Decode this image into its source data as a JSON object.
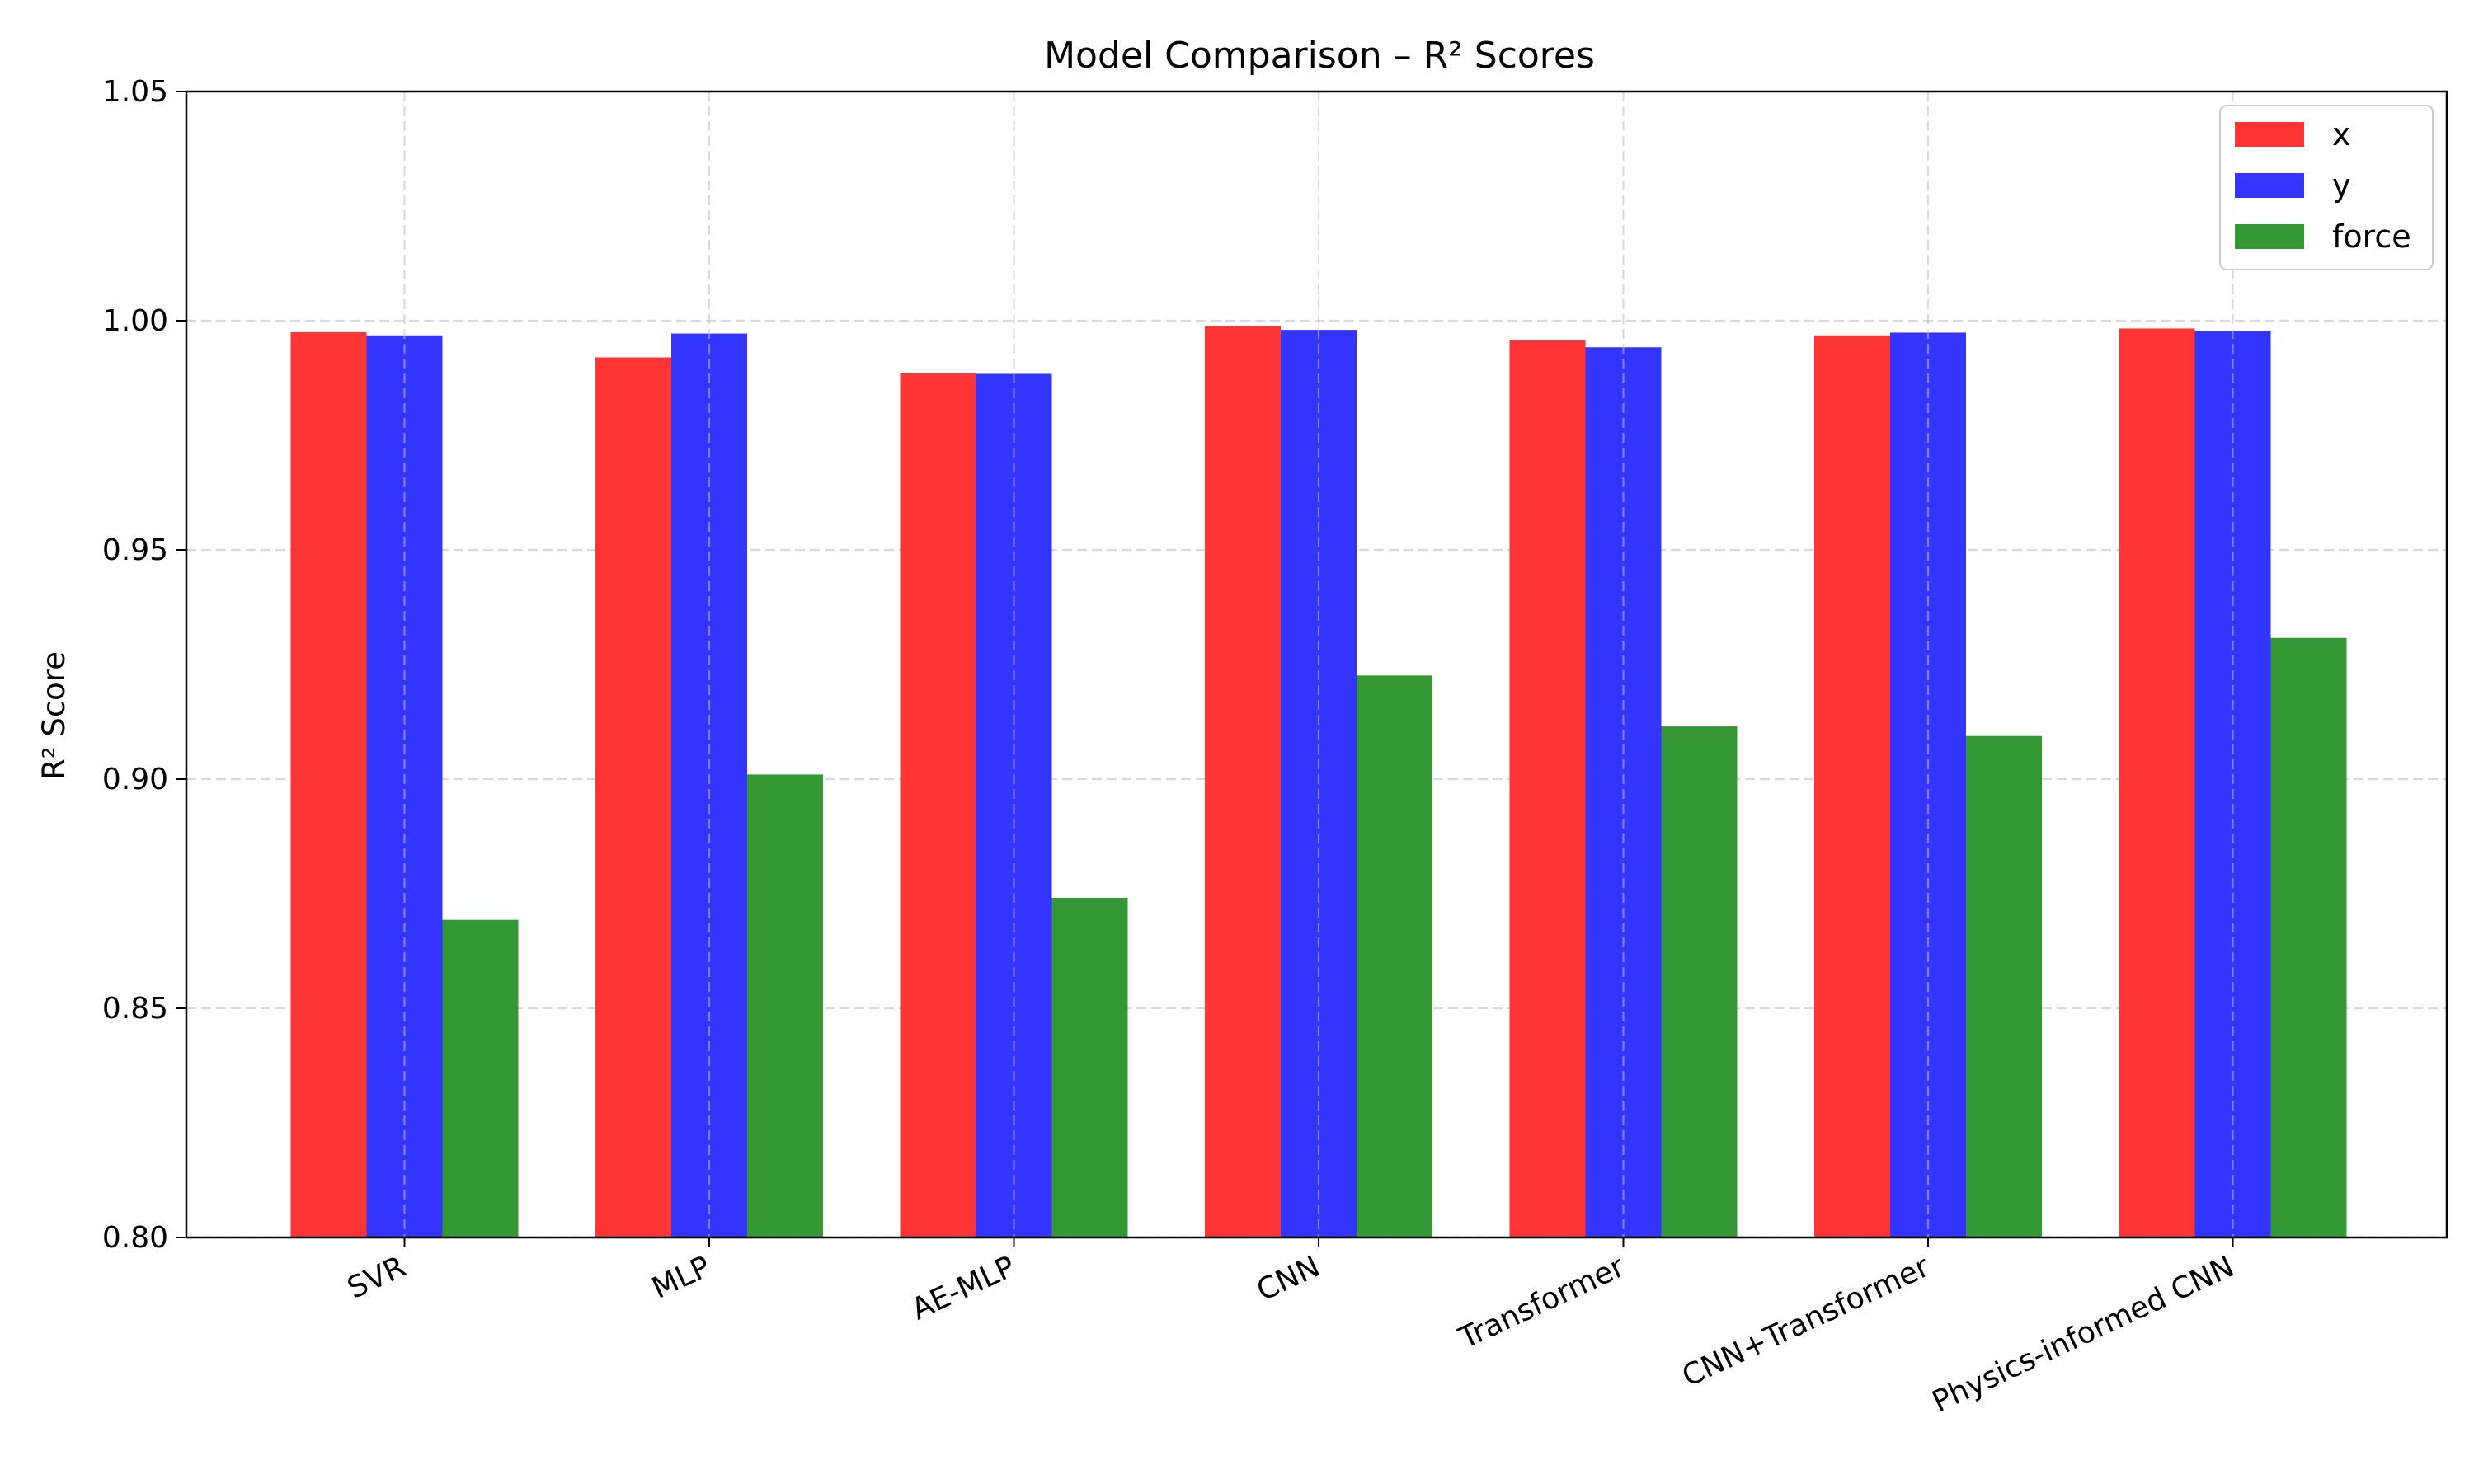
{
  "chart_data": {
    "type": "bar",
    "title": "Model Comparison – R² Scores",
    "xlabel": "",
    "ylabel": "R² Score",
    "ylim": [
      0.8,
      1.05
    ],
    "yticks": [
      "0.80",
      "0.85",
      "0.90",
      "0.95",
      "1.00",
      "1.05"
    ],
    "categories": [
      "SVR",
      "MLP",
      "AE-MLP",
      "CNN",
      "Transformer",
      "CNN+Transformer",
      "Physics-informed CNN"
    ],
    "series": [
      {
        "name": "x",
        "color": "#ff3434",
        "values": [
          0.9975,
          0.992,
          0.9885,
          0.9988,
          0.9957,
          0.9968,
          0.9983
        ]
      },
      {
        "name": "y",
        "color": "#3434ff",
        "values": [
          0.9968,
          0.9972,
          0.9884,
          0.998,
          0.9942,
          0.9974,
          0.9978
        ]
      },
      {
        "name": "force",
        "color": "#349934",
        "values": [
          0.8693,
          0.901,
          0.8741,
          0.9226,
          0.9115,
          0.9094,
          0.9308
        ]
      }
    ],
    "grid": true,
    "legend_position": "top-right"
  }
}
